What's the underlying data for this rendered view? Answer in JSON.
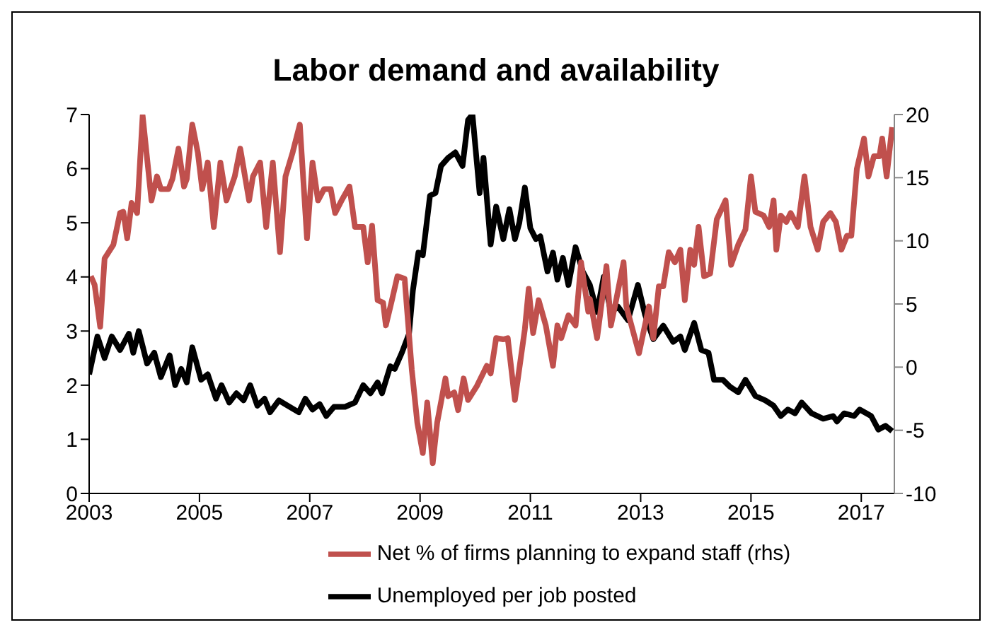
{
  "chart_data": {
    "type": "line",
    "title": "Labor demand and availability",
    "legend": "bottom",
    "grid": false,
    "xlim": [
      2003,
      2017.6
    ],
    "xticks": [
      2003,
      2005,
      2007,
      2009,
      2011,
      2013,
      2015,
      2017
    ],
    "ylim": [
      0,
      7
    ],
    "yticks": [
      0,
      1,
      2,
      3,
      4,
      5,
      6,
      7
    ],
    "y2lim": [
      -10,
      20
    ],
    "y2ticks": [
      -10,
      -5,
      0,
      5,
      10,
      15,
      20
    ],
    "series": [
      {
        "name": "Unemployed per job posted",
        "color": "#000000",
        "x": [
          2003.0,
          2003.15,
          2003.28,
          2003.41,
          2003.56,
          2003.72,
          2003.8,
          2003.9,
          2004.05,
          2004.18,
          2004.3,
          2004.46,
          2004.56,
          2004.67,
          2004.77,
          2004.87,
          2005.03,
          2005.15,
          2005.3,
          2005.4,
          2005.54,
          2005.67,
          2005.8,
          2005.92,
          2006.05,
          2006.18,
          2006.28,
          2006.44,
          2006.6,
          2006.8,
          2006.92,
          2007.05,
          2007.18,
          2007.3,
          2007.44,
          2007.64,
          2007.82,
          2007.97,
          2008.1,
          2008.23,
          2008.31,
          2008.46,
          2008.54,
          2008.67,
          2008.8,
          2008.87,
          2008.97,
          2009.05,
          2009.18,
          2009.28,
          2009.38,
          2009.51,
          2009.64,
          2009.77,
          2009.87,
          2009.95,
          2010.08,
          2010.15,
          2010.28,
          2010.38,
          2010.51,
          2010.62,
          2010.72,
          2010.8,
          2010.9,
          2011.0,
          2011.1,
          2011.18,
          2011.31,
          2011.41,
          2011.49,
          2011.59,
          2011.69,
          2011.82,
          2011.95,
          2012.08,
          2012.21,
          2012.33,
          2012.46,
          2012.59,
          2012.77,
          2012.95,
          2013.08,
          2013.23,
          2013.41,
          2013.59,
          2013.72,
          2013.8,
          2013.97,
          2014.1,
          2014.23,
          2014.33,
          2014.49,
          2014.62,
          2014.77,
          2014.9,
          2015.08,
          2015.26,
          2015.41,
          2015.54,
          2015.67,
          2015.8,
          2015.92,
          2016.1,
          2016.31,
          2016.49,
          2016.56,
          2016.69,
          2016.87,
          2016.97,
          2017.18,
          2017.31,
          2017.44,
          2017.56
        ],
        "values": [
          2.2,
          2.9,
          2.5,
          2.9,
          2.65,
          2.95,
          2.6,
          3.0,
          2.4,
          2.6,
          2.15,
          2.55,
          2.0,
          2.3,
          2.05,
          2.7,
          2.1,
          2.2,
          1.75,
          2.0,
          1.68,
          1.85,
          1.72,
          2.0,
          1.62,
          1.75,
          1.5,
          1.72,
          1.62,
          1.5,
          1.75,
          1.55,
          1.65,
          1.43,
          1.6,
          1.6,
          1.68,
          2.0,
          1.85,
          2.05,
          1.85,
          2.35,
          2.3,
          2.6,
          2.95,
          3.75,
          4.45,
          4.4,
          5.5,
          5.55,
          6.05,
          6.2,
          6.3,
          6.05,
          6.9,
          7.0,
          5.55,
          6.2,
          4.6,
          5.3,
          4.7,
          5.25,
          4.7,
          5.0,
          5.65,
          4.9,
          4.7,
          4.75,
          4.1,
          4.45,
          3.95,
          4.35,
          3.85,
          4.55,
          4.1,
          3.85,
          3.35,
          4.0,
          3.35,
          3.45,
          3.2,
          3.85,
          3.3,
          2.85,
          3.1,
          2.8,
          2.9,
          2.65,
          3.15,
          2.65,
          2.6,
          2.1,
          2.1,
          1.97,
          1.87,
          2.1,
          1.8,
          1.72,
          1.62,
          1.43,
          1.55,
          1.48,
          1.68,
          1.48,
          1.38,
          1.43,
          1.33,
          1.48,
          1.43,
          1.55,
          1.43,
          1.18,
          1.25,
          1.15
        ]
      },
      {
        "name": "Net % of firms planning to expand staff (rhs)",
        "color": "#c0504d",
        "axis": "y2",
        "x": [
          2003.03,
          2003.1,
          2003.2,
          2003.28,
          2003.44,
          2003.56,
          2003.62,
          2003.69,
          2003.77,
          2003.87,
          2003.97,
          2004.13,
          2004.23,
          2004.3,
          2004.44,
          2004.51,
          2004.62,
          2004.72,
          2004.77,
          2004.87,
          2004.97,
          2005.05,
          2005.15,
          2005.26,
          2005.38,
          2005.49,
          2005.64,
          2005.74,
          2005.9,
          2005.97,
          2006.1,
          2006.21,
          2006.33,
          2006.46,
          2006.56,
          2006.69,
          2006.82,
          2006.95,
          2007.05,
          2007.15,
          2007.26,
          2007.38,
          2007.46,
          2007.59,
          2007.72,
          2007.82,
          2007.97,
          2008.05,
          2008.13,
          2008.23,
          2008.33,
          2008.38,
          2008.49,
          2008.59,
          2008.72,
          2008.85,
          2008.95,
          2009.05,
          2009.13,
          2009.23,
          2009.31,
          2009.46,
          2009.51,
          2009.62,
          2009.69,
          2009.79,
          2009.87,
          2010.03,
          2010.21,
          2010.28,
          2010.38,
          2010.51,
          2010.59,
          2010.72,
          2010.9,
          2010.97,
          2011.05,
          2011.15,
          2011.28,
          2011.41,
          2011.49,
          2011.56,
          2011.69,
          2011.82,
          2011.92,
          2012.05,
          2012.08,
          2012.21,
          2012.38,
          2012.46,
          2012.56,
          2012.69,
          2012.74,
          2012.97,
          2013.15,
          2013.23,
          2013.33,
          2013.41,
          2013.51,
          2013.62,
          2013.72,
          2013.8,
          2013.9,
          2013.97,
          2014.05,
          2014.15,
          2014.26,
          2014.38,
          2014.54,
          2014.64,
          2014.77,
          2014.9,
          2015.0,
          2015.08,
          2015.23,
          2015.33,
          2015.41,
          2015.46,
          2015.54,
          2015.64,
          2015.72,
          2015.85,
          2015.97,
          2016.08,
          2016.21,
          2016.31,
          2016.44,
          2016.54,
          2016.64,
          2016.74,
          2016.82,
          2016.92,
          2017.05,
          2017.13,
          2017.23,
          2017.33,
          2017.38,
          2017.46,
          2017.56
        ],
        "values": [
          7.2,
          6.5,
          3.2,
          8.6,
          9.7,
          12.2,
          12.3,
          10.2,
          13.0,
          12.2,
          19.9,
          13.2,
          15.1,
          14.1,
          14.1,
          14.9,
          17.3,
          14.3,
          14.9,
          19.2,
          17.0,
          14.1,
          16.2,
          11.1,
          16.2,
          13.2,
          15.1,
          17.3,
          13.2,
          15.1,
          16.2,
          11.1,
          16.2,
          9.1,
          15.1,
          17.0,
          19.2,
          10.2,
          16.2,
          13.2,
          14.1,
          14.1,
          12.2,
          13.3,
          14.3,
          11.1,
          11.1,
          8.3,
          11.2,
          5.3,
          5.1,
          3.3,
          5.3,
          7.2,
          7.0,
          -0.2,
          -4.4,
          -6.8,
          -2.8,
          -7.6,
          -4.4,
          -0.9,
          -2.3,
          -2.0,
          -3.4,
          -0.9,
          -2.6,
          -1.5,
          0.1,
          -0.5,
          2.3,
          2.2,
          2.3,
          -2.6,
          3.0,
          6.2,
          2.7,
          5.3,
          3.3,
          0.1,
          3.3,
          2.3,
          4.1,
          3.3,
          8.3,
          4.4,
          5.4,
          2.3,
          8.0,
          3.3,
          5.4,
          8.3,
          4.8,
          1.1,
          4.8,
          2.3,
          6.4,
          6.4,
          9.1,
          8.3,
          9.3,
          5.3,
          9.3,
          8.1,
          11.1,
          7.2,
          7.4,
          11.7,
          13.2,
          8.1,
          9.7,
          10.9,
          15.1,
          12.3,
          12.0,
          11.1,
          13.2,
          9.3,
          12.0,
          11.5,
          12.2,
          11.1,
          15.1,
          11.1,
          9.3,
          11.5,
          12.2,
          11.5,
          9.3,
          10.4,
          10.4,
          15.7,
          18.1,
          15.1,
          16.7,
          16.7,
          18.1,
          15.1,
          19.0
        ]
      }
    ]
  }
}
